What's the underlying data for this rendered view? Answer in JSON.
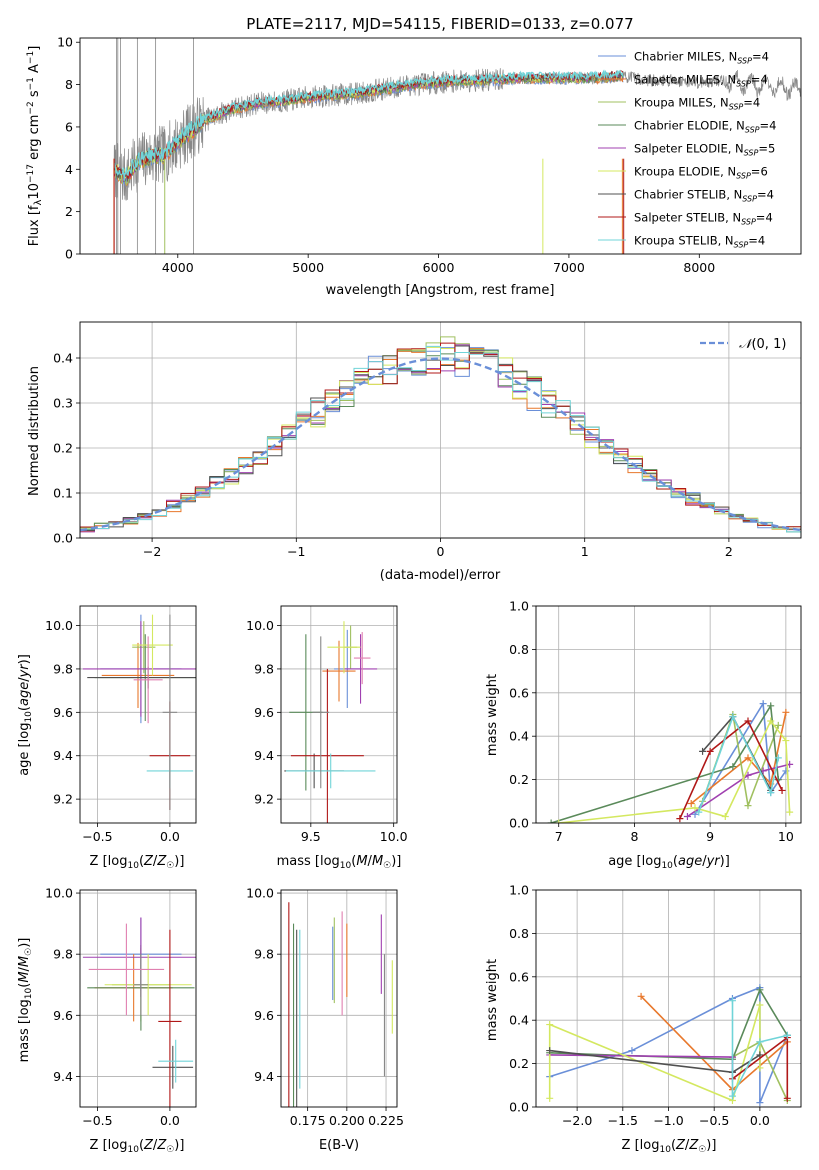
{
  "colors": [
    "#6a8fd8",
    "#e8782c",
    "#a0c060",
    "#5a8a5a",
    "#a040b0",
    "#d4e860",
    "#505050",
    "#b01818",
    "#70d4d8",
    "#888888",
    "#e080b0"
  ],
  "chart_data": [
    {
      "id": "spectrum",
      "type": "line",
      "title": "PLATE=2117, MJD=54115, FIBERID=0133, z=0.077",
      "xlabel": "wavelength [Angstrom, rest frame]",
      "ylabel": "Flux [f_λ10^-17 erg cm^-2 s^-1 A^-1]",
      "xlim": [
        3250,
        8780
      ],
      "ylim": [
        0,
        10.2
      ],
      "xticks": [
        "4000",
        "5000",
        "6000",
        "7000",
        "8000"
      ],
      "yticks": [
        "0",
        "2",
        "4",
        "6",
        "8",
        "10"
      ],
      "grid": false,
      "legend_position": "top-right",
      "observed": {
        "x": [
          3510,
          3600,
          3700,
          3800,
          3900,
          4000,
          4100,
          4200,
          4400,
          4600,
          4800,
          5000,
          5200,
          5400,
          5600,
          5800,
          6000,
          6200,
          6400,
          6600,
          6800,
          7000,
          7200,
          7400,
          7600,
          7800,
          8000,
          8200,
          8400,
          8600,
          8750
        ],
        "y": [
          4.0,
          3.6,
          4.4,
          4.6,
          4.7,
          5.3,
          5.8,
          6.3,
          6.8,
          7.1,
          7.2,
          7.4,
          7.5,
          7.6,
          7.8,
          8.0,
          8.1,
          8.2,
          8.2,
          8.3,
          8.3,
          8.3,
          8.3,
          8.4,
          8.2,
          8.2,
          8.1,
          8.2,
          8.0,
          7.9,
          7.8
        ]
      },
      "series": [
        {
          "name": "Chabrier MILES",
          "nssp": "4"
        },
        {
          "name": "Salpeter MILES",
          "nssp": "4"
        },
        {
          "name": "Kroupa MILES",
          "nssp": "4"
        },
        {
          "name": "Chabrier ELODIE",
          "nssp": "4"
        },
        {
          "name": "Salpeter ELODIE",
          "nssp": "5"
        },
        {
          "name": "Kroupa ELODIE",
          "nssp": "6"
        },
        {
          "name": "Chabrier STELIB",
          "nssp": "4"
        },
        {
          "name": "Salpeter STELIB",
          "nssp": "4"
        },
        {
          "name": "Kroupa STELIB",
          "nssp": "4"
        }
      ]
    },
    {
      "id": "residuals",
      "type": "bar",
      "xlabel": "(data-model)/error",
      "ylabel": "Normed distribution",
      "xlim": [
        -2.5,
        2.5
      ],
      "ylim": [
        0,
        0.48
      ],
      "xticks": [
        "−2",
        "−1",
        "0",
        "1",
        "2"
      ],
      "yticks": [
        "0.0",
        "0.1",
        "0.2",
        "0.3",
        "0.4"
      ],
      "grid": true,
      "legend_position": "top-right",
      "legend": "N(0, 1)",
      "bin_width": 0.1
    },
    {
      "id": "age_vs_Z",
      "type": "scatter",
      "xlabel": "Z [log10(Z/Z⊙)]",
      "ylabel": "age [log10(age/yr)]",
      "xlim": [
        -0.62,
        0.18
      ],
      "ylim": [
        9.09,
        10.09
      ],
      "xticks": [
        "−0.5",
        "0.0"
      ],
      "yticks": [
        "9.2",
        "9.4",
        "9.6",
        "9.8",
        "10.0"
      ],
      "grid": true,
      "points": [
        {
          "x": -0.2,
          "y": 9.8,
          "xerr": 0.28,
          "yerr": 0.25
        },
        {
          "x": -0.22,
          "y": 9.77,
          "xerr": 0.25,
          "yerr": 0.15
        },
        {
          "x": -0.18,
          "y": 9.9,
          "xerr": 0.08,
          "yerr": 0.12
        },
        {
          "x": -0.17,
          "y": 9.76,
          "xerr": 0.35,
          "yerr": 0.2
        },
        {
          "x": -0.2,
          "y": 9.8,
          "xerr": 0.4,
          "yerr": 0.22
        },
        {
          "x": -0.12,
          "y": 9.91,
          "xerr": 0.14,
          "yerr": 0.14
        },
        {
          "x": -0.15,
          "y": 9.76,
          "xerr": 0.42,
          "yerr": 0.05
        },
        {
          "x": 0.0,
          "y": 9.4,
          "xerr": 0.14,
          "yerr": 0.25
        },
        {
          "x": 0.0,
          "y": 9.33,
          "xerr": 0.16,
          "yerr": 0.08
        },
        {
          "x": 0.0,
          "y": 9.6,
          "xerr": 0.05,
          "yerr": 0.45
        },
        {
          "x": -0.15,
          "y": 9.75,
          "xerr": 0.1,
          "yerr": 0.2
        }
      ]
    },
    {
      "id": "age_vs_mass",
      "type": "scatter",
      "xlabel": "mass [log10(M/M⊙)]",
      "ylabel": "",
      "xlim": [
        9.32,
        10.02
      ],
      "ylim": [
        9.09,
        10.09
      ],
      "xticks": [
        "9.5",
        "10.0"
      ],
      "yticks": [
        "9.2",
        "9.4",
        "9.6",
        "9.8",
        "10.0"
      ],
      "grid": true,
      "points": [
        {
          "x": 9.72,
          "y": 9.8,
          "xerr": 0.08,
          "yerr": 0.18
        },
        {
          "x": 9.67,
          "y": 9.79,
          "xerr": 0.1,
          "yerr": 0.14
        },
        {
          "x": 9.74,
          "y": 9.9,
          "xerr": 0.04,
          "yerr": 0.1
        },
        {
          "x": 9.47,
          "y": 9.6,
          "xerr": 0.1,
          "yerr": 0.36
        },
        {
          "x": 9.8,
          "y": 9.8,
          "xerr": 0.1,
          "yerr": 0.16
        },
        {
          "x": 9.7,
          "y": 9.9,
          "xerr": 0.1,
          "yerr": 0.12
        },
        {
          "x": 9.52,
          "y": 9.33,
          "xerr": 0.18,
          "yerr": 0.08
        },
        {
          "x": 9.6,
          "y": 9.4,
          "xerr": 0.22,
          "yerr": 0.4
        },
        {
          "x": 9.62,
          "y": 9.33,
          "xerr": 0.27,
          "yerr": 0.08
        },
        {
          "x": 9.56,
          "y": 9.6,
          "xerr": 0.05,
          "yerr": 0.35
        },
        {
          "x": 9.81,
          "y": 9.85,
          "xerr": 0.05,
          "yerr": 0.12
        }
      ]
    },
    {
      "id": "massweight_vs_age",
      "type": "line",
      "xlabel": "age [log10(age/yr)]",
      "ylabel": "mass weight",
      "xlim": [
        6.7,
        10.2
      ],
      "ylim": [
        0,
        1
      ],
      "xticks": [
        "7",
        "8",
        "9",
        "10"
      ],
      "yticks": [
        "0.0",
        "0.2",
        "0.4",
        "0.6",
        "0.8",
        "1.0"
      ],
      "grid": true,
      "series": [
        {
          "x": [
            8.8,
            9.7,
            9.8,
            10.0
          ],
          "y": [
            0.04,
            0.55,
            0.14,
            0.24
          ]
        },
        {
          "x": [
            8.75,
            9.5,
            9.8,
            10.0
          ],
          "y": [
            0.09,
            0.3,
            0.18,
            0.51
          ]
        },
        {
          "x": [
            8.9,
            9.3,
            9.5,
            9.9
          ],
          "y": [
            0.1,
            0.5,
            0.08,
            0.45
          ]
        },
        {
          "x": [
            6.9,
            9.3,
            9.8,
            9.9
          ],
          "y": [
            0.0,
            0.26,
            0.54,
            0.2
          ]
        },
        {
          "x": [
            8.7,
            9.5,
            9.7,
            10.05
          ],
          "y": [
            0.03,
            0.22,
            0.24,
            0.27
          ]
        },
        {
          "x": [
            7.0,
            8.8,
            9.2,
            9.8,
            10.0,
            10.05
          ],
          "y": [
            0.0,
            0.07,
            0.03,
            0.47,
            0.38,
            0.05
          ]
        },
        {
          "x": [
            8.9,
            9.3,
            9.8
          ],
          "y": [
            0.33,
            0.49,
            0.15
          ]
        },
        {
          "x": [
            8.6,
            9.0,
            9.5,
            9.95
          ],
          "y": [
            0.02,
            0.33,
            0.47,
            0.15
          ]
        },
        {
          "x": [
            8.85,
            9.3,
            9.8,
            9.9
          ],
          "y": [
            0.05,
            0.49,
            0.14,
            0.3
          ]
        }
      ]
    },
    {
      "id": "mass_vs_Z",
      "type": "scatter",
      "xlabel": "Z [log10(Z/Z⊙)]",
      "ylabel": "mass [log10(M/M⊙)]",
      "xlim": [
        -0.62,
        0.18
      ],
      "ylim": [
        9.3,
        10.01
      ],
      "xticks": [
        "−0.5",
        "0.0"
      ],
      "yticks": [
        "9.4",
        "9.6",
        "9.8",
        "10.0"
      ],
      "grid": true,
      "points": [
        {
          "x": -0.2,
          "y": 9.8,
          "xerr": 0.28,
          "yerr": 0.12
        },
        {
          "x": -0.25,
          "y": 9.69,
          "xerr": 0.27,
          "yerr": 0.11
        },
        {
          "x": -0.2,
          "y": 9.7,
          "xerr": 0.2,
          "yerr": 0.12
        },
        {
          "x": -0.2,
          "y": 9.69,
          "xerr": 0.37,
          "yerr": 0.14
        },
        {
          "x": -0.2,
          "y": 9.79,
          "xerr": 0.4,
          "yerr": 0.13
        },
        {
          "x": -0.15,
          "y": 9.7,
          "xerr": 0.3,
          "yerr": 0.1
        },
        {
          "x": 0.02,
          "y": 9.43,
          "xerr": 0.14,
          "yerr": 0.07
        },
        {
          "x": 0.0,
          "y": 9.58,
          "xerr": 0.08,
          "yerr": 0.3
        },
        {
          "x": 0.04,
          "y": 9.45,
          "xerr": 0.12,
          "yerr": 0.07
        },
        {
          "x": -0.2,
          "y": 9.7,
          "xerr": 0.05,
          "yerr": 0.1
        },
        {
          "x": -0.3,
          "y": 9.75,
          "xerr": 0.26,
          "yerr": 0.15
        }
      ]
    },
    {
      "id": "mass_vs_ebv",
      "type": "scatter",
      "xlabel": "E(B-V)",
      "ylabel": "",
      "xlim": [
        0.158,
        0.232
      ],
      "ylim": [
        9.3,
        10.01
      ],
      "xticks": [
        "0.175",
        "0.200",
        "0.225"
      ],
      "yticks": [
        "9.4",
        "9.6",
        "9.8",
        "10.0"
      ],
      "grid": true,
      "points": [
        {
          "x": 0.191,
          "y": 9.77,
          "yerr": 0.12
        },
        {
          "x": 0.2,
          "y": 9.78,
          "yerr": 0.12
        },
        {
          "x": 0.192,
          "y": 9.78,
          "yerr": 0.14
        },
        {
          "x": 0.166,
          "y": 9.6,
          "yerr": 0.3
        },
        {
          "x": 0.222,
          "y": 9.8,
          "yerr": 0.13
        },
        {
          "x": 0.229,
          "y": 9.66,
          "yerr": 0.12
        },
        {
          "x": 0.168,
          "y": 9.58,
          "yerr": 0.3
        },
        {
          "x": 0.163,
          "y": 9.62,
          "yerr": 0.35
        },
        {
          "x": 0.17,
          "y": 9.62,
          "yerr": 0.26
        },
        {
          "x": 0.224,
          "y": 9.6,
          "yerr": 0.2
        },
        {
          "x": 0.197,
          "y": 9.77,
          "yerr": 0.17
        }
      ]
    },
    {
      "id": "massweight_vs_Z",
      "type": "line",
      "xlabel": "Z [log10(Z/Z⊙)]",
      "ylabel": "mass weight",
      "xlim": [
        -2.45,
        0.45
      ],
      "ylim": [
        0,
        1
      ],
      "xticks": [
        "−2.0",
        "−1.5",
        "−1.0",
        "−0.5",
        "0.0"
      ],
      "yticks": [
        "0.0",
        "0.2",
        "0.4",
        "0.6",
        "0.8",
        "1.0"
      ],
      "grid": true,
      "series": [
        {
          "x": [
            -2.3,
            -1.4,
            -0.3,
            0.0,
            0.0,
            0.3
          ],
          "y": [
            0.14,
            0.26,
            0.5,
            0.55,
            0.02,
            0.33
          ]
        },
        {
          "x": [
            -1.3,
            -0.3,
            0.3
          ],
          "y": [
            0.51,
            0.08,
            0.3
          ]
        },
        {
          "x": [
            -0.3,
            0.0,
            0.3
          ],
          "y": [
            0.23,
            0.3,
            0.03
          ]
        },
        {
          "x": [
            -2.3,
            -0.3,
            0.0,
            0.3
          ],
          "y": [
            0.25,
            0.22,
            0.54,
            0.33
          ]
        },
        {
          "x": [
            -2.3,
            -0.3,
            -0.3
          ],
          "y": [
            0.24,
            0.23,
            0.16
          ]
        },
        {
          "x": [
            -2.3,
            -2.3,
            -0.3,
            0.0,
            0.0
          ],
          "y": [
            0.04,
            0.38,
            0.03,
            0.47,
            0.18
          ]
        },
        {
          "x": [
            -2.3,
            -0.3,
            0.0
          ],
          "y": [
            0.26,
            0.16,
            0.24
          ]
        },
        {
          "x": [
            -0.3,
            0.3,
            0.3
          ],
          "y": [
            0.13,
            0.32,
            0.04
          ]
        },
        {
          "x": [
            -0.3,
            -0.3,
            0.0,
            0.3
          ],
          "y": [
            0.49,
            0.05,
            0.3,
            0.33
          ]
        }
      ]
    }
  ]
}
